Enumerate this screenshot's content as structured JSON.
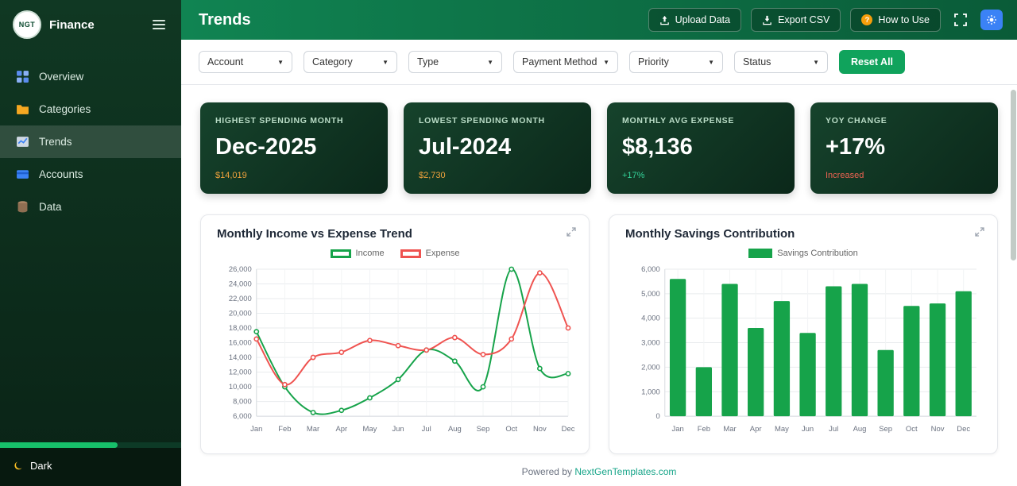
{
  "colors": {
    "accent_green": "#10a35c",
    "income_line": "#16a34a",
    "expense_line": "#ef5350",
    "bar_fill": "#16a34a",
    "link": "#17a589"
  },
  "sidebar": {
    "logo_text": "NGT",
    "brand": "Finance",
    "items": [
      {
        "label": "Overview",
        "icon": "grid-icon",
        "active": false
      },
      {
        "label": "Categories",
        "icon": "folder-icon",
        "active": false
      },
      {
        "label": "Trends",
        "icon": "trends-chart-icon",
        "active": true
      },
      {
        "label": "Accounts",
        "icon": "credit-card-icon",
        "active": false
      },
      {
        "label": "Data",
        "icon": "database-icon",
        "active": false
      }
    ],
    "theme_toggle_label": "Dark"
  },
  "header": {
    "title": "Trends",
    "upload_label": "Upload Data",
    "export_label": "Export CSV",
    "help_label": "How to Use"
  },
  "filters": {
    "options": [
      "Account",
      "Category",
      "Type",
      "Payment Method",
      "Priority",
      "Status"
    ],
    "reset_label": "Reset All"
  },
  "stats": [
    {
      "label": "HIGHEST SPENDING MONTH",
      "value": "Dec-2025",
      "sub": "$14,019",
      "sub_color": "#f2a33c"
    },
    {
      "label": "LOWEST SPENDING MONTH",
      "value": "Jul-2024",
      "sub": "$2,730",
      "sub_color": "#f2a33c"
    },
    {
      "label": "MONTHLY AVG EXPENSE",
      "value": "$8,136",
      "sub": "+17%",
      "sub_color": "#34d399"
    },
    {
      "label": "YOY CHANGE",
      "value": "+17%",
      "sub": "Increased",
      "sub_color": "#ee6352"
    }
  ],
  "chart_data": [
    {
      "type": "line",
      "title": "Monthly Income vs Expense Trend",
      "categories": [
        "Jan",
        "Feb",
        "Mar",
        "Apr",
        "May",
        "Jun",
        "Jul",
        "Aug",
        "Sep",
        "Oct",
        "Nov",
        "Dec"
      ],
      "series": [
        {
          "name": "Income",
          "color": "#16a34a",
          "values": [
            17500,
            10000,
            6500,
            6800,
            8500,
            11000,
            15000,
            13500,
            10000,
            26000,
            12500,
            11800
          ]
        },
        {
          "name": "Expense",
          "color": "#ef5350",
          "values": [
            16500,
            10300,
            14000,
            14700,
            16300,
            15600,
            15000,
            16700,
            14400,
            16500,
            25500,
            18000
          ]
        }
      ],
      "ylim": [
        6000,
        26000
      ],
      "ytick_step": 2000,
      "legend_position": "top",
      "grid": true
    },
    {
      "type": "bar",
      "title": "Monthly Savings Contribution",
      "categories": [
        "Jan",
        "Feb",
        "Mar",
        "Apr",
        "May",
        "Jun",
        "Jul",
        "Aug",
        "Sep",
        "Oct",
        "Nov",
        "Dec"
      ],
      "series": [
        {
          "name": "Savings Contribution",
          "color": "#16a34a",
          "values": [
            5600,
            2000,
            5400,
            3600,
            4700,
            3400,
            5300,
            5400,
            2700,
            4500,
            4600,
            5100
          ]
        }
      ],
      "ylim": [
        0,
        6000
      ],
      "ytick_step": 1000,
      "legend_position": "top",
      "grid": true
    }
  ],
  "footer": {
    "prefix": "Powered by",
    "link_text": "NextGenTemplates.com"
  }
}
